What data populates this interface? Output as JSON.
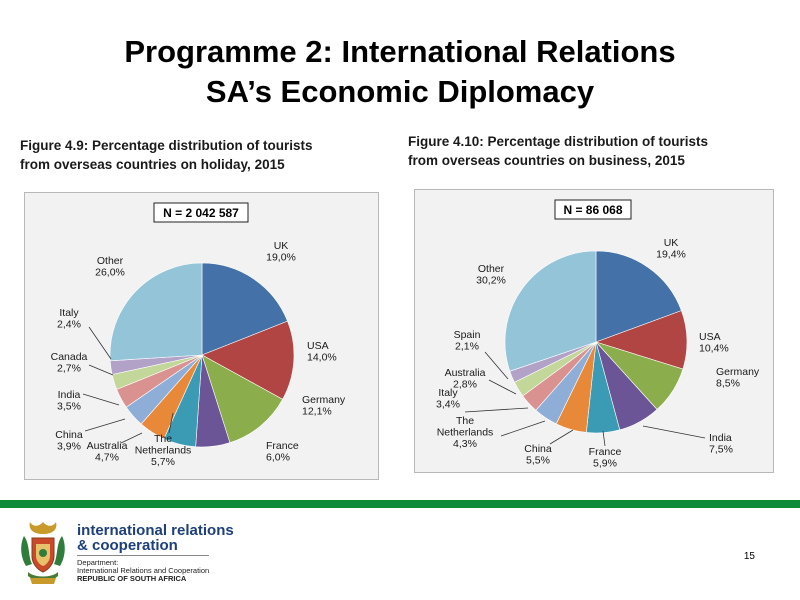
{
  "slide": {
    "title_line1": "Programme 2: International Relations",
    "title_line2": "SA’s Economic Diplomacy",
    "page_number": "15"
  },
  "footer": {
    "brand_line1": "international relations",
    "brand_line2": "& cooperation",
    "dept_label": "Department:",
    "dept_name": "International Relations and Cooperation",
    "country": "REPUBLIC OF SOUTH AFRICA",
    "accent_color": "#0f8a37",
    "logo_icon": "coat-of-arms-icon"
  },
  "chart_data": [
    {
      "type": "pie",
      "caption_line1": "Figure 4.9: Percentage distribution of tourists",
      "caption_line2": "from overseas countries on holiday, 2015",
      "n_label": "N = 2 042 587",
      "slices": [
        {
          "label": "UK",
          "value_label": "19,0%",
          "value": 19.0,
          "color": "#4472a8"
        },
        {
          "label": "USA",
          "value_label": "14,0%",
          "value": 14.0,
          "color": "#b04543"
        },
        {
          "label": "Germany",
          "value_label": "12,1%",
          "value": 12.1,
          "color": "#8cad4c"
        },
        {
          "label": "France",
          "value_label": "6,0%",
          "value": 6.0,
          "color": "#6b5596"
        },
        {
          "label": "The Netherlands",
          "label_line1": "The",
          "label_line2": "Netherlands",
          "value_label": "5,7%",
          "value": 5.7,
          "color": "#3c9bb4"
        },
        {
          "label": "Australia",
          "value_label": "4,7%",
          "value": 4.7,
          "color": "#e8893a"
        },
        {
          "label": "China",
          "value_label": "3,9%",
          "value": 3.9,
          "color": "#8faed7"
        },
        {
          "label": "India",
          "value_label": "3,5%",
          "value": 3.5,
          "color": "#d99290"
        },
        {
          "label": "Canada",
          "value_label": "2,7%",
          "value": 2.7,
          "color": "#c3d79b"
        },
        {
          "label": "Italy",
          "value_label": "2,4%",
          "value": 2.4,
          "color": "#b3a2c8"
        },
        {
          "label": "Other",
          "value_label": "26,0%",
          "value": 26.0,
          "color": "#93c4d8"
        }
      ]
    },
    {
      "type": "pie",
      "caption_line1": "Figure 4.10: Percentage distribution of tourists",
      "caption_line2": "from overseas countries on business, 2015",
      "n_label": "N = 86 068",
      "slices": [
        {
          "label": "UK",
          "value_label": "19,4%",
          "value": 19.4,
          "color": "#4472a8"
        },
        {
          "label": "USA",
          "value_label": "10,4%",
          "value": 10.4,
          "color": "#b04543"
        },
        {
          "label": "Germany",
          "value_label": "8,5%",
          "value": 8.5,
          "color": "#8cad4c"
        },
        {
          "label": "India",
          "value_label": "7,5%",
          "value": 7.5,
          "color": "#6b5596"
        },
        {
          "label": "France",
          "value_label": "5,9%",
          "value": 5.9,
          "color": "#3c9bb4"
        },
        {
          "label": "China",
          "value_label": "5,5%",
          "value": 5.5,
          "color": "#e8893a"
        },
        {
          "label": "The Netherlands",
          "label_line1": "The",
          "label_line2": "Netherlands",
          "value_label": "4,3%",
          "value": 4.3,
          "color": "#8faed7"
        },
        {
          "label": "Italy",
          "value_label": "3,4%",
          "value": 3.4,
          "color": "#d99290"
        },
        {
          "label": "Australia",
          "value_label": "2,8%",
          "value": 2.8,
          "color": "#c3d79b"
        },
        {
          "label": "Spain",
          "value_label": "2,1%",
          "value": 2.1,
          "color": "#b3a2c8"
        },
        {
          "label": "Other",
          "value_label": "30,2%",
          "value": 30.2,
          "color": "#93c4d8"
        }
      ]
    }
  ]
}
